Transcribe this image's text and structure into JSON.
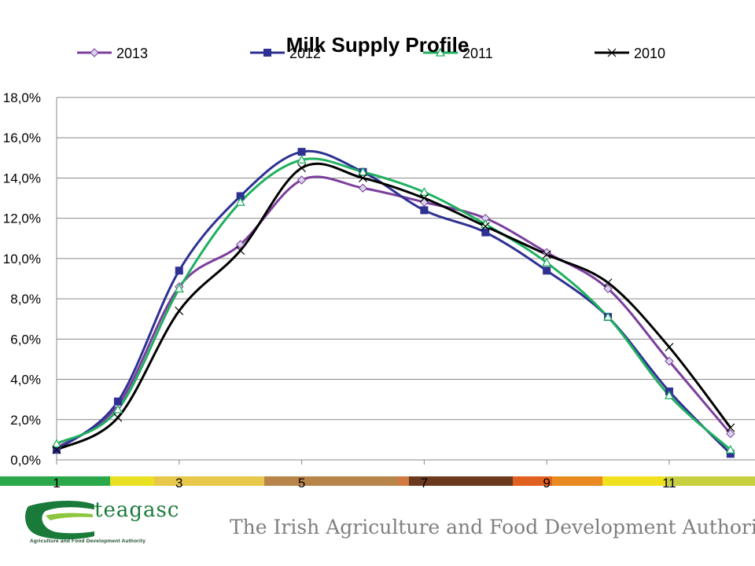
{
  "chart_data": {
    "type": "line",
    "title": "Milk Supply Profile",
    "x": [
      1,
      2,
      3,
      4,
      5,
      6,
      7,
      8,
      9,
      10,
      11,
      12
    ],
    "x_tick_labels": [
      "1",
      "3",
      "5",
      "7",
      "9",
      "11"
    ],
    "y_tick_labels": [
      "0,0%",
      "2,0%",
      "4,0%",
      "6,0%",
      "8,0%",
      "10,0%",
      "12,0%",
      "14,0%",
      "16,0%",
      "18,0%"
    ],
    "ylim": [
      0,
      18
    ],
    "xlim": [
      1,
      12.4
    ],
    "grid": "horizontal",
    "legend_position": "top",
    "series": [
      {
        "name": "2013",
        "color": "#7b3f9c",
        "marker": "diamond",
        "values": [
          0.6,
          2.7,
          8.6,
          10.7,
          13.9,
          13.5,
          12.8,
          12.0,
          10.3,
          8.5,
          4.9,
          1.3
        ]
      },
      {
        "name": "2012",
        "color": "#2e3192",
        "marker": "square",
        "values": [
          0.5,
          2.9,
          9.4,
          13.1,
          15.3,
          14.3,
          12.4,
          11.3,
          9.4,
          7.1,
          3.4,
          0.3
        ]
      },
      {
        "name": "2011",
        "color": "#20b060",
        "marker": "triangle",
        "values": [
          0.8,
          2.5,
          8.5,
          12.8,
          14.9,
          14.3,
          13.3,
          11.7,
          9.8,
          7.1,
          3.2,
          0.5
        ]
      },
      {
        "name": "2010",
        "color": "#000000",
        "marker": "x",
        "values": [
          0.5,
          2.1,
          7.4,
          10.4,
          14.5,
          14.0,
          13.0,
          11.6,
          10.2,
          8.8,
          5.6,
          1.6
        ]
      }
    ]
  },
  "footer": {
    "logo_name": "teagasc",
    "logo_subtitle": "Agriculture and Food Development Authority",
    "tagline": "The Irish Agriculture and Food Development Authority",
    "stripe_colors": [
      "#2aa84a",
      "#e8e020",
      "#e8c84a",
      "#b8844a",
      "#6b3a1e",
      "#e06020",
      "#e88a20",
      "#f0e020",
      "#c8d040"
    ]
  }
}
